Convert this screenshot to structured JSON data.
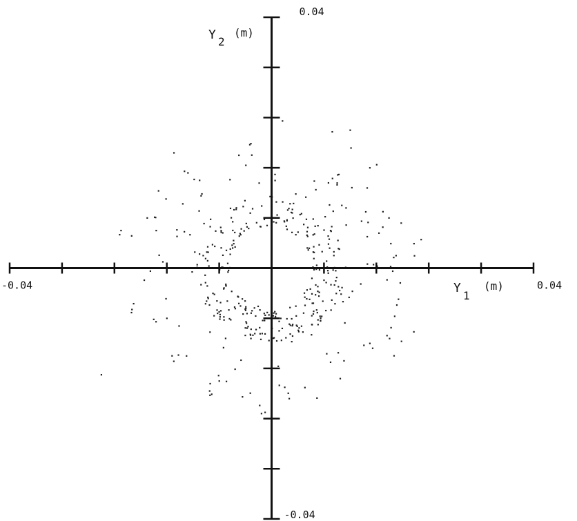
{
  "chart_data": {
    "type": "scatter",
    "title": "",
    "xlabel": "Y1 (m)",
    "ylabel": "Y2 (m)",
    "x_axis_label": {
      "base": "Y",
      "subscript": "1",
      "unit": "(m)"
    },
    "y_axis_label": {
      "base": "Y",
      "subscript": "2",
      "unit": "(m)"
    },
    "xlim": [
      -0.04,
      0.04
    ],
    "ylim": [
      -0.04,
      0.04
    ],
    "x_tick_step": 0.008,
    "y_tick_step": 0.008,
    "tick_labels": {
      "x_min": "-0.04",
      "x_max": "0.04",
      "y_min": "-0.04",
      "y_max": "0.04"
    },
    "grid": false,
    "axes_style": "crossed at origin",
    "point_color": "#222222",
    "axis_color": "#111111",
    "description": "",
    "pattern": {
      "inner_ring_radius": 0.0075,
      "outer_ring_radius": 0.0105,
      "ring_jitter": 0.0012,
      "scatter_radius_range": [
        0.012,
        0.024
      ],
      "points_inner_ring": 140,
      "points_outer_ring": 160,
      "points_scattered": 130,
      "seed": 7
    },
    "points": [
      [
        0.012,
        0.022
      ],
      [
        -0.005,
        0.018
      ],
      [
        -0.011,
        0.014
      ],
      [
        0.015,
        0.016
      ],
      [
        -0.019,
        0.008
      ],
      [
        0.017,
        0.009
      ],
      [
        -0.016,
        -0.008
      ],
      [
        0.015,
        -0.012
      ],
      [
        -0.013,
        -0.014
      ],
      [
        0.009,
        -0.015
      ],
      [
        -0.026,
        -0.017
      ],
      [
        0.002,
        -0.019
      ],
      [
        -0.023,
        0.006
      ],
      [
        0.019,
        0.002
      ],
      [
        -0.001,
        -0.023
      ],
      [
        -0.008,
        -0.018
      ]
    ]
  }
}
